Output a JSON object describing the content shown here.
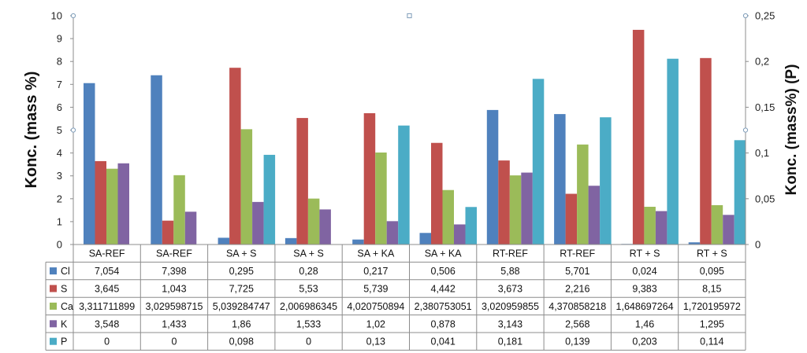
{
  "chart_data": {
    "type": "bar",
    "categories": [
      "SA-REF",
      "SA-REF",
      "SA + S",
      "SA + S",
      "SA + KA",
      "SA + KA",
      "RT-REF",
      "RT-REF",
      "RT + S",
      "RT + S"
    ],
    "series": [
      {
        "name": "Cl",
        "axis": "left",
        "color": "#4f81bd",
        "values": [
          7.054,
          7.398,
          0.295,
          0.28,
          0.217,
          0.506,
          5.88,
          5.701,
          0.024,
          0.095
        ],
        "labels": [
          "7,054",
          "7,398",
          "0,295",
          "0,28",
          "0,217",
          "0,506",
          "5,88",
          "5,701",
          "0,024",
          "0,095"
        ]
      },
      {
        "name": "S",
        "axis": "left",
        "color": "#c0504d",
        "values": [
          3.645,
          1.043,
          7.725,
          5.53,
          5.739,
          4.442,
          3.673,
          2.216,
          9.383,
          8.15
        ],
        "labels": [
          "3,645",
          "1,043",
          "7,725",
          "5,53",
          "5,739",
          "4,442",
          "3,673",
          "2,216",
          "9,383",
          "8,15"
        ]
      },
      {
        "name": "Ca",
        "axis": "left",
        "color": "#9bbb59",
        "values": [
          3.311711899,
          3.029598715,
          5.039284747,
          2.006986345,
          4.020750894,
          2.380753051,
          3.020959855,
          4.370858218,
          1.648697264,
          1.720195972
        ],
        "labels": [
          "3,311711899",
          "3,029598715",
          "5,039284747",
          "2,006986345",
          "4,020750894",
          "2,380753051",
          "3,020959855",
          "4,370858218",
          "1,648697264",
          "1,720195972"
        ]
      },
      {
        "name": "K",
        "axis": "left",
        "color": "#8064a2",
        "values": [
          3.548,
          1.433,
          1.86,
          1.533,
          1.02,
          0.878,
          3.143,
          2.568,
          1.46,
          1.295
        ],
        "labels": [
          "3,548",
          "1,433",
          "1,86",
          "1,533",
          "1,02",
          "0,878",
          "3,143",
          "2,568",
          "1,46",
          "1,295"
        ]
      },
      {
        "name": "P",
        "axis": "right",
        "color": "#4bacc6",
        "values": [
          0,
          0,
          0.098,
          0,
          0.13,
          0.041,
          0.181,
          0.139,
          0.203,
          0.114
        ],
        "labels": [
          "0",
          "0",
          "0,098",
          "0",
          "0,13",
          "0,041",
          "0,181",
          "0,139",
          "0,203",
          "0,114"
        ]
      }
    ],
    "ylabel": "Konc. (mass %)",
    "y2label": "Konc. (mass%) (P)",
    "ylim": [
      0,
      10
    ],
    "y2lim": [
      0,
      0.25
    ],
    "yticks": [
      "0",
      "1",
      "2",
      "3",
      "4",
      "5",
      "6",
      "7",
      "8",
      "9",
      "10"
    ],
    "y2ticks": [
      "0",
      "0,05",
      "0,1",
      "0,15",
      "0,2",
      "0,25"
    ],
    "grid": false,
    "legend": "data-table"
  }
}
